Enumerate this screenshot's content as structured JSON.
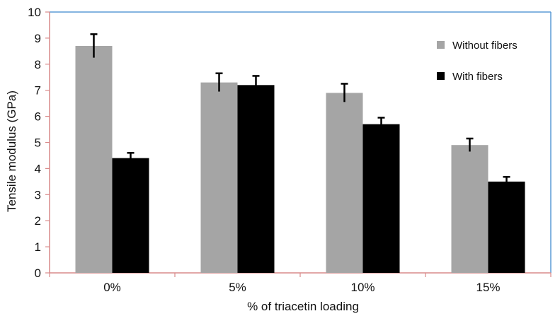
{
  "chart_data": {
    "type": "bar",
    "categories": [
      "0%",
      "5%",
      "10%",
      "15%"
    ],
    "series": [
      {
        "name": "Without fibers",
        "values": [
          8.7,
          7.3,
          6.9,
          4.9
        ],
        "errors": [
          0.45,
          0.35,
          0.35,
          0.25
        ],
        "color": "#a5a5a5"
      },
      {
        "name": "With fibers",
        "values": [
          4.4,
          7.2,
          5.7,
          3.5
        ],
        "errors": [
          0.2,
          0.35,
          0.25,
          0.18
        ],
        "color": "#000000"
      }
    ],
    "xlabel": "% of triacetin loading",
    "ylabel": "Tensile modulus (GPa)",
    "ylim": [
      0,
      10
    ],
    "yticks": [
      "0",
      "1",
      "2",
      "3",
      "4",
      "5",
      "6",
      "7",
      "8",
      "9",
      "10"
    ],
    "legend_position": "top-right",
    "grid": false,
    "plot_border_color": "#5b9bd5",
    "axis_color": "#d98a8a"
  }
}
